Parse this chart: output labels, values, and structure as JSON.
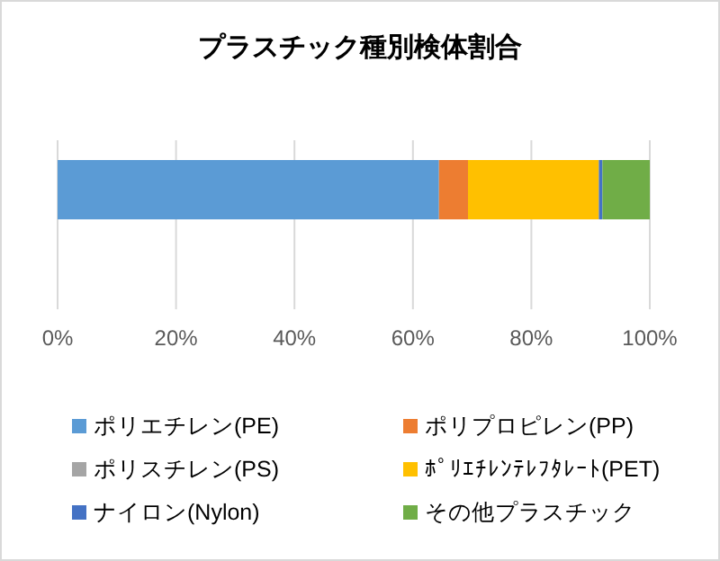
{
  "chart_data": {
    "type": "bar",
    "title": "プラスチック種別検体割合",
    "orientation": "horizontal",
    "stacked": true,
    "categories": [
      null
    ],
    "series": [
      {
        "name": "ポリエチレン(PE)",
        "color": "#5b9bd5",
        "values": [
          64.4
        ]
      },
      {
        "name": "ポリプロピレン(PP)",
        "color": "#ed7d31",
        "values": [
          4.9
        ]
      },
      {
        "name": "ポリスチレン(PS)",
        "color": "#a5a5a5",
        "values": [
          null
        ]
      },
      {
        "name": "ﾎﾟﾘｴﾁﾚﾝﾃﾚﾌﾀﾚｰﾄ(PET)",
        "color": "#ffc000",
        "values": [
          22.1
        ]
      },
      {
        "name": "ナイロン(Nylon)",
        "color": "#4472c4",
        "values": [
          0.6
        ]
      },
      {
        "name": "その他プラスチック",
        "color": "#70ad47",
        "values": [
          8.0
        ]
      }
    ],
    "xlim": [
      0,
      100
    ],
    "xticks": [
      {
        "value": 0,
        "label": "0%"
      },
      {
        "value": 20,
        "label": "20%"
      },
      {
        "value": 40,
        "label": "40%"
      },
      {
        "value": 60,
        "label": "60%"
      },
      {
        "value": 80,
        "label": "80%"
      },
      {
        "value": 100,
        "label": "100%"
      }
    ],
    "grid": "x",
    "legend": "bottom"
  }
}
